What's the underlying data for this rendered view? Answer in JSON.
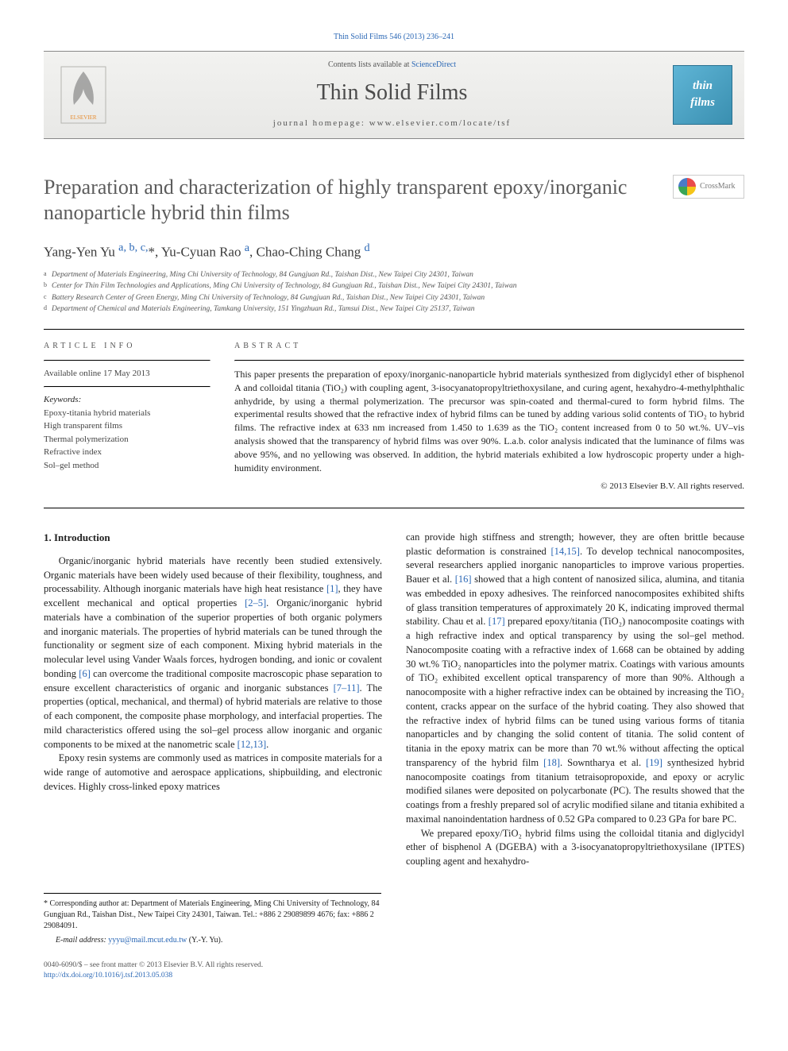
{
  "top_citation_link": "Thin Solid Films 546 (2013) 236–241",
  "header": {
    "contents_prefix": "Contents lists available at ",
    "contents_link": "ScienceDirect",
    "journal_name": "Thin Solid Films",
    "homepage_label": "journal homepage: ",
    "homepage_url": "www.elsevier.com/locate/tsf",
    "journal_logo_line1": "thin",
    "journal_logo_line2": "films"
  },
  "crossmark_label": "CrossMark",
  "title": "Preparation and characterization of highly transparent epoxy/inorganic nanoparticle hybrid thin films",
  "authors_html": "Yang-Yen Yu <a href='#'><sup>a, b, c,</sup></a>*, Yu-Cyuan Rao <sup><a href='#'>a</a></sup>, Chao-Ching Chang <sup><a href='#'>d</a></sup>",
  "affiliations": [
    {
      "sup": "a",
      "text": "Department of Materials Engineering, Ming Chi University of Technology, 84 Gungjuan Rd., Taishan Dist., New Taipei City 24301, Taiwan"
    },
    {
      "sup": "b",
      "text": "Center for Thin Film Technologies and Applications, Ming Chi University of Technology, 84 Gungjuan Rd., Taishan Dist., New Taipei City 24301, Taiwan"
    },
    {
      "sup": "c",
      "text": "Battery Research Center of Green Energy, Ming Chi University of Technology, 84 Gungjuan Rd., Taishan Dist., New Taipei City 24301, Taiwan"
    },
    {
      "sup": "d",
      "text": "Department of Chemical and Materials Engineering, Tamkang University, 151 Yingzhuan Rd., Tamsui Dist., New Taipei City 25137, Taiwan"
    }
  ],
  "info": {
    "info_header": "article info",
    "date": "Available online 17 May 2013",
    "keywords_label": "Keywords:",
    "keywords": [
      "Epoxy-titania hybrid materials",
      "High transparent films",
      "Thermal polymerization",
      "Refractive index",
      "Sol–gel method"
    ]
  },
  "abstract": {
    "header": "abstract",
    "text": "This paper presents the preparation of epoxy/inorganic-nanoparticle hybrid materials synthesized from diglycidyl ether of bisphenol A and colloidal titania (TiO₂) with coupling agent, 3-isocyanatopropyltriethoxysilane, and curing agent, hexahydro-4-methylphthalic anhydride, by using a thermal polymerization. The precursor was spin-coated and thermal-cured to form hybrid films. The experimental results showed that the refractive index of hybrid films can be tuned by adding various solid contents of TiO₂ to hybrid films. The refractive index at 633 nm increased from 1.450 to 1.639 as the TiO₂ content increased from 0 to 50 wt.%. UV–vis analysis showed that the transparency of hybrid films was over 90%. L.a.b. color analysis indicated that the luminance of films was above 95%, and no yellowing was observed. In addition, the hybrid materials exhibited a low hydroscopic property under a high-humidity environment.",
    "copyright": "© 2013 Elsevier B.V. All rights reserved."
  },
  "body": {
    "section_head": "1. Introduction",
    "left_p1": "Organic/inorganic hybrid materials have recently been studied extensively. Organic materials have been widely used because of their flexibility, toughness, and processability. Although inorganic materials have high heat resistance <a href='#'>[1]</a>, they have excellent mechanical and optical properties <a href='#'>[2–5]</a>. Organic/inorganic hybrid materials have a combination of the superior properties of both organic polymers and inorganic materials. The properties of hybrid materials can be tuned through the functionality or segment size of each component. Mixing hybrid materials in the molecular level using Vander Waals forces, hydrogen bonding, and ionic or covalent bonding <a href='#'>[6]</a> can overcome the traditional composite macroscopic phase separation to ensure excellent characteristics of organic and inorganic substances <a href='#'>[7–11]</a>. The properties (optical, mechanical, and thermal) of hybrid materials are relative to those of each component, the composite phase morphology, and interfacial properties. The mild characteristics offered using the sol–gel process allow inorganic and organic components to be mixed at the nanometric scale <a href='#'>[12,13]</a>.",
    "left_p2": "Epoxy resin systems are commonly used as matrices in composite materials for a wide range of automotive and aerospace applications, shipbuilding, and electronic devices. Highly cross-linked epoxy matrices",
    "right_p1": "can provide high stiffness and strength; however, they are often brittle because plastic deformation is constrained <a href='#'>[14,15]</a>. To develop technical nanocomposites, several researchers applied inorganic nanoparticles to improve various properties. Bauer et al. <a href='#'>[16]</a> showed that a high content of nanosized silica, alumina, and titania was embedded in epoxy adhesives. The reinforced nanocomposites exhibited shifts of glass transition temperatures of approximately 20 K, indicating improved thermal stability. Chau et al. <a href='#'>[17]</a> prepared epoxy/titania (TiO₂) nanocomposite coatings with a high refractive index and optical transparency by using the sol–gel method. Nanocomposite coating with a refractive index of 1.668 can be obtained by adding 30 wt.% TiO₂ nanoparticles into the polymer matrix. Coatings with various amounts of TiO₂ exhibited excellent optical transparency of more than 90%. Although a nanocomposite with a higher refractive index can be obtained by increasing the TiO₂ content, cracks appear on the surface of the hybrid coating. They also showed that the refractive index of hybrid films can be tuned using various forms of titania nanoparticles and by changing the solid content of titania. The solid content of titania in the epoxy matrix can be more than 70 wt.% without affecting the optical transparency of the hybrid film <a href='#'>[18]</a>. Sowntharya et al. <a href='#'>[19]</a> synthesized hybrid nanocomposite coatings from titanium tetraisopropoxide, and epoxy or acrylic modified silanes were deposited on polycarbonate (PC). The results showed that the coatings from a freshly prepared sol of acrylic modified silane and titania exhibited a maximal nanoindentation hardness of 0.52 GPa compared to 0.23 GPa for bare PC.",
    "right_p2": "We prepared epoxy/TiO₂ hybrid films using the colloidal titania and diglycidyl ether of bisphenol A (DGEBA) with a 3-isocyanatopropyltriethoxysilane (IPTES) coupling agent and hexahydro-"
  },
  "footnotes": {
    "corresp": "* Corresponding author at: Department of Materials Engineering, Ming Chi University of Technology, 84 Gungjuan Rd., Taishan Dist., New Taipei City 24301, Taiwan. Tel.: +886 2 29089899 4676; fax: +886 2 29084091.",
    "email_label": "E-mail address: ",
    "email": "yyyu@mail.mcut.edu.tw",
    "email_suffix": " (Y.-Y. Yu)."
  },
  "footer": {
    "line1": "0040-6090/$ – see front matter © 2013 Elsevier B.V. All rights reserved.",
    "doi": "http://dx.doi.org/10.1016/j.tsf.2013.05.038"
  },
  "colors": {
    "link": "#2a67b5",
    "heading_gray": "#5c5c5c",
    "elsevier_orange": "#e78b2e"
  }
}
